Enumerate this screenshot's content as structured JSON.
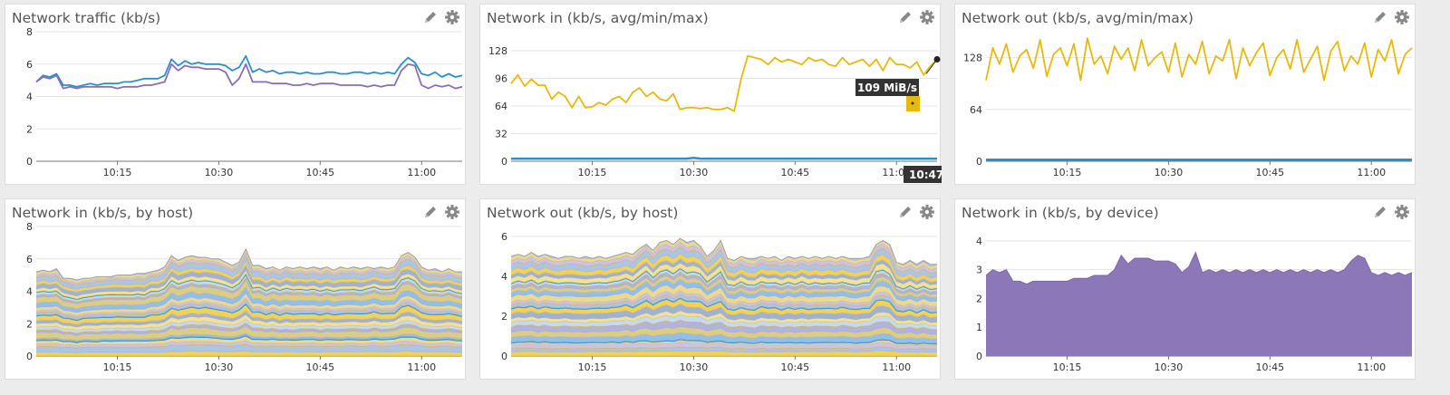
{
  "colors": {
    "blue": "#2d8fc9",
    "purple": "#8b6db5",
    "yellow": "#e7b90e",
    "area_purple": "#8c78b9",
    "grid": "#e3e3e3",
    "tooltip_bg": "#333333"
  },
  "icons": {
    "edit": "pencil-icon",
    "settings": "gear-icon"
  },
  "panels": [
    {
      "title": "Network traffic (kb/s)"
    },
    {
      "title": "Network in (kb/s, avg/min/max)",
      "tooltip_value": "109 MiB/s",
      "tooltip_time": "10:47"
    },
    {
      "title": "Network out (kb/s, avg/min/max)"
    },
    {
      "title": "Network in (kb/s, by host)"
    },
    {
      "title": "Network out (kb/s, by host)"
    },
    {
      "title": "Network in (kb/s, by device)"
    }
  ],
  "chart_data": [
    {
      "type": "line",
      "title": "Network traffic (kb/s)",
      "x_ticks": [
        "10:15",
        "10:30",
        "10:45",
        "11:00"
      ],
      "y_ticks": [
        0,
        2,
        4,
        6,
        8
      ],
      "ylim": [
        0,
        8
      ],
      "x_start": "10:03",
      "x_end": "11:06",
      "series": [
        {
          "color": "blue",
          "values": [
            4.9,
            5.3,
            5.2,
            5.4,
            4.7,
            4.7,
            4.6,
            4.7,
            4.8,
            4.7,
            4.8,
            4.8,
            4.8,
            4.9,
            4.9,
            5.0,
            5.1,
            5.1,
            5.1,
            5.3,
            6.3,
            5.9,
            6.2,
            6.0,
            6.1,
            6.0,
            6.0,
            6.0,
            5.9,
            5.6,
            5.8,
            6.5,
            5.5,
            5.7,
            5.5,
            5.6,
            5.4,
            5.5,
            5.5,
            5.4,
            5.5,
            5.4,
            5.4,
            5.5,
            5.5,
            5.4,
            5.4,
            5.5,
            5.5,
            5.4,
            5.5,
            5.4,
            5.5,
            5.4,
            6.0,
            6.4,
            6.1,
            5.4,
            5.3,
            5.5,
            5.2,
            5.4,
            5.2,
            5.3
          ]
        },
        {
          "color": "purple",
          "values": [
            4.9,
            5.2,
            5.1,
            5.3,
            4.5,
            4.6,
            4.5,
            4.6,
            4.6,
            4.6,
            4.6,
            4.6,
            4.5,
            4.6,
            4.6,
            4.6,
            4.7,
            4.7,
            4.8,
            4.9,
            6.0,
            5.6,
            5.9,
            5.8,
            5.8,
            5.7,
            5.7,
            5.7,
            5.5,
            4.7,
            5.1,
            6.0,
            4.9,
            4.9,
            4.9,
            4.8,
            4.8,
            4.8,
            4.7,
            4.7,
            4.8,
            4.7,
            4.8,
            4.8,
            4.8,
            4.7,
            4.7,
            4.7,
            4.7,
            4.6,
            4.7,
            4.6,
            4.7,
            4.7,
            5.6,
            6.0,
            5.9,
            4.7,
            4.5,
            4.7,
            4.6,
            4.7,
            4.5,
            4.6
          ]
        }
      ]
    },
    {
      "type": "line",
      "title": "Network in (kb/s, avg/min/max)",
      "x_ticks": [
        "10:15",
        "10:30",
        "10:45",
        "11:00"
      ],
      "y_ticks": [
        0,
        32,
        64,
        96,
        128
      ],
      "ylim": [
        0,
        150
      ],
      "x_start": "10:03",
      "x_end": "11:06",
      "series": [
        {
          "color": "yellow",
          "values": [
            90,
            100,
            87,
            95,
            88,
            88,
            72,
            80,
            75,
            62,
            75,
            62,
            63,
            68,
            65,
            72,
            75,
            68,
            80,
            85,
            75,
            80,
            72,
            70,
            78,
            60,
            62,
            62,
            61,
            62,
            60,
            60,
            62,
            58,
            95,
            122,
            120,
            118,
            112,
            120,
            115,
            118,
            115,
            112,
            120,
            116,
            118,
            112,
            110,
            120,
            112,
            115,
            118,
            110,
            118,
            105,
            120,
            112,
            112,
            108,
            115,
            100,
            110,
            118
          ]
        },
        {
          "color": "blue",
          "values": [
            3,
            3,
            3,
            3,
            3,
            3,
            3,
            3,
            3,
            3,
            3,
            3,
            3,
            3,
            3,
            3,
            3,
            3,
            3,
            3,
            3,
            3,
            3,
            3,
            3,
            3,
            3,
            4,
            3,
            3,
            3,
            3,
            3,
            3,
            3,
            3,
            3,
            3,
            3,
            3,
            3,
            3,
            3,
            3,
            3,
            3,
            3,
            3,
            3,
            3,
            3,
            3,
            3,
            3,
            3,
            3,
            3,
            3,
            3,
            3,
            3,
            3,
            3,
            3
          ]
        }
      ]
    },
    {
      "type": "line",
      "title": "Network out (kb/s, avg/min/max)",
      "x_ticks": [
        "10:15",
        "10:30",
        "10:45",
        "11:00"
      ],
      "y_ticks": [
        0,
        64,
        128
      ],
      "ylim": [
        0,
        160
      ],
      "x_start": "10:03",
      "x_end": "11:06",
      "series": [
        {
          "color": "yellow",
          "values": [
            100,
            140,
            120,
            145,
            110,
            130,
            138,
            115,
            150,
            105,
            132,
            140,
            118,
            145,
            100,
            152,
            120,
            130,
            108,
            142,
            126,
            140,
            112,
            150,
            118,
            128,
            135,
            110,
            146,
            104,
            132,
            120,
            148,
            108,
            130,
            124,
            150,
            102,
            140,
            118,
            134,
            146,
            106,
            128,
            138,
            114,
            150,
            110,
            126,
            142,
            100,
            136,
            148,
            112,
            130,
            120,
            146,
            104,
            138,
            124,
            150,
            108,
            132,
            140
          ]
        },
        {
          "color": "blue",
          "values": [
            2,
            2,
            2,
            2,
            2,
            2,
            2,
            2,
            2,
            2,
            2,
            2,
            2,
            2,
            2,
            2,
            2,
            2,
            2,
            2,
            2,
            2,
            2,
            2,
            2,
            2,
            2,
            2,
            2,
            2,
            2,
            2,
            2,
            2,
            2,
            2,
            2,
            2,
            2,
            2,
            2,
            2,
            2,
            2,
            2,
            2,
            2,
            2,
            2,
            2,
            2,
            2,
            2,
            2,
            2,
            2,
            2,
            2,
            2,
            2,
            2,
            2,
            2,
            2
          ]
        }
      ]
    },
    {
      "type": "area",
      "title": "Network in (kb/s, by host)",
      "x_ticks": [
        "10:15",
        "10:30",
        "10:45",
        "11:00"
      ],
      "y_ticks": [
        0,
        2,
        4,
        6,
        8
      ],
      "ylim": [
        0,
        8
      ],
      "x_start": "10:03",
      "x_end": "11:06",
      "total": [
        5.2,
        5.3,
        5.2,
        5.4,
        4.8,
        4.8,
        4.7,
        4.8,
        4.8,
        4.9,
        4.9,
        4.9,
        5.0,
        5.0,
        5.0,
        5.1,
        5.1,
        5.2,
        5.3,
        5.5,
        6.2,
        5.9,
        6.1,
        6.2,
        6.1,
        6.1,
        6.0,
        6.0,
        5.8,
        5.6,
        5.8,
        6.6,
        5.6,
        5.6,
        5.4,
        5.5,
        5.3,
        5.5,
        5.4,
        5.5,
        5.4,
        5.5,
        5.4,
        5.5,
        5.3,
        5.5,
        5.4,
        5.5,
        5.4,
        5.5,
        5.4,
        5.5,
        5.4,
        5.5,
        6.2,
        6.4,
        6.1,
        5.5,
        5.3,
        5.4,
        5.2,
        5.4,
        5.2,
        5.2
      ]
    },
    {
      "type": "area",
      "title": "Network out (kb/s, by host)",
      "x_ticks": [
        "10:15",
        "10:30",
        "10:45",
        "11:00"
      ],
      "y_ticks": [
        0,
        2,
        4,
        6
      ],
      "ylim": [
        0,
        6.5
      ],
      "x_start": "10:03",
      "x_end": "11:06",
      "total": [
        5.0,
        5.1,
        5.0,
        5.2,
        5.0,
        5.1,
        5.0,
        4.9,
        5.0,
        5.0,
        4.9,
        5.0,
        4.9,
        5.0,
        4.9,
        5.0,
        5.1,
        5.2,
        5.1,
        5.4,
        5.6,
        5.3,
        5.7,
        5.8,
        5.6,
        5.9,
        5.7,
        5.8,
        5.5,
        5.0,
        5.3,
        5.8,
        4.9,
        4.8,
        5.0,
        4.9,
        4.9,
        5.0,
        4.9,
        5.0,
        4.8,
        5.0,
        4.9,
        5.0,
        4.9,
        5.0,
        4.9,
        5.0,
        4.9,
        5.0,
        4.9,
        4.9,
        4.9,
        5.0,
        5.6,
        5.8,
        5.6,
        4.7,
        4.6,
        4.8,
        4.6,
        4.8,
        4.6,
        4.6
      ]
    },
    {
      "type": "area",
      "title": "Network in (kb/s, by device)",
      "x_ticks": [
        "10:15",
        "10:30",
        "10:45",
        "11:00"
      ],
      "y_ticks": [
        0,
        1,
        2,
        3,
        4
      ],
      "ylim": [
        0,
        4.5
      ],
      "x_start": "10:03",
      "x_end": "11:06",
      "total": [
        2.8,
        3.0,
        2.9,
        3.0,
        2.6,
        2.6,
        2.5,
        2.6,
        2.6,
        2.6,
        2.6,
        2.6,
        2.6,
        2.7,
        2.7,
        2.7,
        2.8,
        2.8,
        2.8,
        3.0,
        3.5,
        3.2,
        3.4,
        3.4,
        3.4,
        3.3,
        3.3,
        3.3,
        3.2,
        2.9,
        3.1,
        3.6,
        2.9,
        3.0,
        2.9,
        3.0,
        2.9,
        3.0,
        2.9,
        3.0,
        2.9,
        3.0,
        2.9,
        3.0,
        2.9,
        3.0,
        2.9,
        3.0,
        2.9,
        3.0,
        2.9,
        3.0,
        2.9,
        3.0,
        3.3,
        3.5,
        3.4,
        2.9,
        2.8,
        2.9,
        2.8,
        2.9,
        2.8,
        2.9
      ]
    }
  ]
}
